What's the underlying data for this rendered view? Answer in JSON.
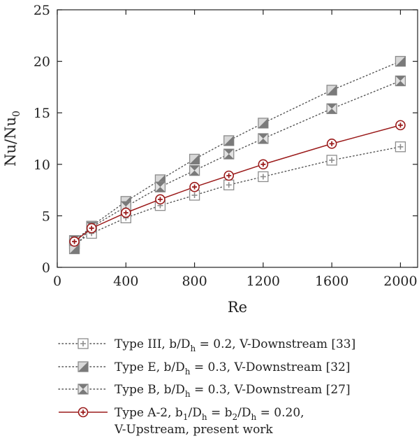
{
  "chart_data": {
    "type": "line",
    "xlabel": "Re",
    "ylabel": "Nu/Nu",
    "ylabel_sub": "0",
    "xlim": [
      0,
      2100
    ],
    "ylim": [
      0,
      25
    ],
    "xticks": [
      0,
      400,
      800,
      1200,
      1600,
      2000
    ],
    "yticks": [
      0,
      5,
      10,
      15,
      20,
      25
    ],
    "grid": false,
    "legend_position": "bottom",
    "series": [
      {
        "key": "type-iii",
        "marker": "square-plus",
        "line": "dotted",
        "color": "#8c8c8c",
        "x": [
          100,
          200,
          400,
          600,
          800,
          1000,
          1200,
          1600,
          2000
        ],
        "y": [
          2.3,
          3.3,
          4.8,
          6.0,
          7.0,
          8.0,
          8.8,
          10.4,
          11.7
        ],
        "legend": [
          {
            "t": "Type III, b/D"
          },
          {
            "t": "h",
            "sub": true
          },
          {
            "t": " = 0.2, V-Downstream [33]"
          }
        ]
      },
      {
        "key": "type-e",
        "marker": "square-half",
        "line": "dotted",
        "color": "#8c8c8c",
        "x": [
          100,
          200,
          400,
          600,
          800,
          1000,
          1200,
          1600,
          2000
        ],
        "y": [
          1.8,
          4.0,
          6.4,
          8.5,
          10.5,
          12.3,
          14.0,
          17.2,
          20.0
        ],
        "legend": [
          {
            "t": "Type E, b/D"
          },
          {
            "t": "h",
            "sub": true
          },
          {
            "t": " = 0.3, V-Downstream [32]"
          }
        ]
      },
      {
        "key": "type-b",
        "marker": "square-bowtie",
        "line": "dotted",
        "color": "#8c8c8c",
        "x": [
          100,
          200,
          400,
          600,
          800,
          1000,
          1200,
          1600,
          2000
        ],
        "y": [
          2.6,
          3.9,
          5.9,
          7.8,
          9.4,
          11.0,
          12.5,
          15.4,
          18.1
        ],
        "legend": [
          {
            "t": "Type B, b/D"
          },
          {
            "t": "h",
            "sub": true
          },
          {
            "t": " = 0.3, V-Downstream [27]"
          }
        ]
      },
      {
        "key": "type-a2",
        "marker": "circle-plus",
        "line": "solid",
        "color": "#9b1b1b",
        "x": [
          100,
          200,
          400,
          600,
          800,
          1000,
          1200,
          1600,
          2000
        ],
        "y": [
          2.5,
          3.8,
          5.3,
          6.6,
          7.8,
          8.9,
          10.0,
          12.0,
          13.8
        ],
        "legend": [
          {
            "t": "Type A-2, b"
          },
          {
            "t": "1",
            "sub": true
          },
          {
            "t": "/D"
          },
          {
            "t": "h",
            "sub": true
          },
          {
            "t": " = b"
          },
          {
            "t": "2",
            "sub": true
          },
          {
            "t": "/D"
          },
          {
            "t": "h",
            "sub": true
          },
          {
            "t": " = 0.20,"
          }
        ],
        "legend_line2": "V-Upstream, present work"
      }
    ]
  }
}
